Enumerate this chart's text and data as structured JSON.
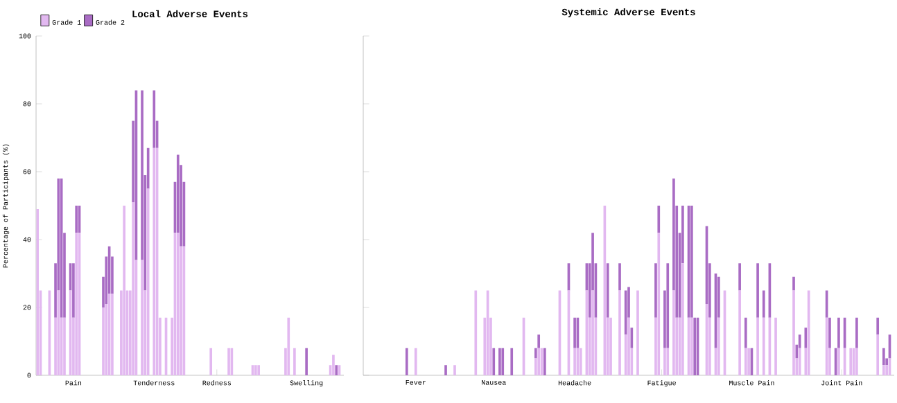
{
  "chart_data": [
    {
      "type": "bar",
      "title": "Local Adverse Events",
      "ylabel": "Percentage of Participants (%)",
      "stacked": true,
      "legend": "top left",
      "categories": [
        null,
        null,
        null,
        null,
        null,
        null,
        null,
        null,
        null,
        null,
        null,
        null,
        "Pain",
        null,
        null,
        null,
        null,
        null,
        null,
        null,
        null,
        null,
        null,
        null,
        null,
        null,
        null,
        null,
        null,
        null,
        null,
        null,
        null,
        null,
        null,
        null,
        null,
        null,
        null,
        "Tenderness",
        null,
        null,
        null,
        null,
        null,
        null,
        null,
        null,
        null,
        null,
        null,
        null,
        null,
        null,
        null,
        null,
        null,
        null,
        null,
        null,
        "Redness",
        null,
        null,
        null,
        null,
        null,
        null,
        null,
        null,
        null,
        null,
        null,
        null,
        null,
        null,
        null,
        null,
        null,
        null,
        null,
        null,
        null,
        null,
        null,
        null,
        null,
        null,
        null,
        null,
        null,
        "Swelling",
        null,
        null,
        null,
        null,
        null,
        null,
        null,
        null,
        null,
        null,
        null,
        null
      ],
      "ylim": [
        0,
        100
      ],
      "yticks": [
        0,
        20,
        40,
        60,
        80,
        100
      ],
      "series": [
        {
          "name": "Grade 1",
          "color": "#e2b8f0",
          "values": [
            49,
            25,
            0,
            0,
            25,
            0,
            17,
            25,
            17,
            17,
            0,
            25,
            17,
            42,
            42,
            0,
            0,
            0,
            0,
            0,
            0,
            0,
            20,
            21,
            24,
            24,
            0,
            0,
            25,
            50,
            25,
            25,
            51,
            34,
            0,
            34,
            25,
            55,
            0,
            67,
            67,
            17,
            0,
            17,
            0,
            17,
            42,
            42,
            38,
            38,
            0,
            0,
            0,
            0,
            0,
            0,
            0,
            0,
            8,
            0,
            0,
            0,
            0,
            0,
            8,
            8,
            0,
            0,
            0,
            0,
            0,
            0,
            3,
            3,
            3,
            0,
            0,
            0,
            0,
            0,
            0,
            0,
            0,
            8,
            17,
            0,
            8,
            0,
            0,
            0,
            0,
            0,
            0,
            0,
            0,
            0,
            0,
            0,
            3,
            6,
            0,
            3,
            0
          ]
        },
        {
          "name": "Grade 2",
          "color": "#a96cc4",
          "values": [
            0,
            0,
            0,
            0,
            0,
            0,
            16,
            33,
            41,
            25,
            0,
            8,
            16,
            8,
            8,
            0,
            0,
            0,
            0,
            0,
            0,
            0,
            9,
            14,
            14,
            11,
            0,
            0,
            0,
            0,
            0,
            0,
            24,
            50,
            0,
            50,
            34,
            12,
            0,
            17,
            8,
            0,
            0,
            0,
            0,
            0,
            15,
            23,
            24,
            19,
            0,
            0,
            0,
            0,
            0,
            0,
            0,
            0,
            0,
            0,
            0,
            0,
            0,
            0,
            0,
            0,
            0,
            0,
            0,
            0,
            0,
            0,
            0,
            0,
            0,
            0,
            0,
            0,
            0,
            0,
            0,
            0,
            0,
            0,
            0,
            0,
            0,
            0,
            0,
            0,
            8,
            0,
            0,
            0,
            0,
            0,
            0,
            0,
            0,
            0,
            3,
            0,
            0
          ]
        }
      ]
    },
    {
      "type": "bar",
      "title": "Systemic Adverse Events",
      "stacked": true,
      "tick_labels": "x",
      "categories": [
        null,
        null,
        null,
        null,
        null,
        null,
        null,
        null,
        null,
        null,
        null,
        null,
        null,
        null,
        null,
        null,
        null,
        "Fever",
        null,
        null,
        null,
        null,
        null,
        null,
        null,
        null,
        null,
        null,
        null,
        null,
        null,
        null,
        null,
        null,
        null,
        null,
        null,
        null,
        null,
        null,
        null,
        null,
        null,
        "Nausea",
        null,
        null,
        null,
        null,
        null,
        null,
        null,
        null,
        null,
        null,
        null,
        null,
        null,
        null,
        null,
        null,
        null,
        null,
        null,
        null,
        null,
        null,
        null,
        null,
        null,
        null,
        "Headache",
        null,
        null,
        null,
        null,
        null,
        null,
        null,
        null,
        null,
        null,
        null,
        null,
        null,
        null,
        null,
        null,
        null,
        null,
        null,
        null,
        null,
        null,
        null,
        null,
        null,
        null,
        null,
        null,
        "Fatigue",
        null,
        null,
        null,
        null,
        null,
        null,
        null,
        null,
        null,
        null,
        null,
        null,
        null,
        null,
        null,
        null,
        null,
        null,
        null,
        null,
        null,
        null,
        null,
        null,
        null,
        null,
        null,
        null,
        null,
        "Muscle Pain",
        null,
        null,
        null,
        null,
        null,
        null,
        null,
        null,
        null,
        null,
        null,
        null,
        null,
        null,
        null,
        null,
        null,
        null,
        null,
        null,
        null,
        null,
        null,
        null,
        null,
        null,
        null,
        null,
        null,
        "Joint Pain",
        null,
        null,
        null,
        null,
        null,
        null,
        null,
        null,
        null,
        null,
        null,
        null,
        null,
        null,
        null,
        null,
        null
      ],
      "ylim": [
        0,
        100
      ],
      "yticks": [
        0,
        20,
        40,
        60,
        80,
        100
      ],
      "series": [
        {
          "color": "#e2b8f0",
          "values": [
            0,
            0,
            0,
            0,
            0,
            0,
            0,
            0,
            0,
            0,
            0,
            0,
            0,
            0,
            0,
            0,
            0,
            8,
            0,
            0,
            0,
            0,
            0,
            0,
            0,
            0,
            0,
            0,
            0,
            0,
            3,
            0,
            0,
            0,
            0,
            0,
            0,
            25,
            0,
            0,
            17,
            25,
            17,
            0,
            0,
            0,
            0,
            0,
            0,
            0,
            0,
            0,
            0,
            17,
            0,
            0,
            0,
            5,
            8,
            8,
            0,
            0,
            0,
            0,
            0,
            25,
            0,
            0,
            25,
            0,
            8,
            8,
            8,
            0,
            25,
            17,
            25,
            17,
            0,
            0,
            50,
            17,
            17,
            0,
            0,
            25,
            0,
            12,
            17,
            8,
            0,
            25,
            0,
            0,
            0,
            0,
            0,
            17,
            42,
            0,
            8,
            8,
            0,
            25,
            17,
            17,
            33,
            0,
            17,
            17,
            0,
            0,
            0,
            0,
            21,
            17,
            0,
            8,
            17,
            0,
            25,
            0,
            0,
            0,
            0,
            25,
            0,
            8,
            8,
            0,
            0,
            17,
            0,
            17,
            0,
            17,
            0,
            17,
            0,
            0,
            0,
            0,
            0,
            25,
            5,
            8,
            0,
            8,
            25,
            0,
            0,
            0,
            0,
            0,
            17,
            8,
            0,
            0,
            8,
            0,
            8,
            0,
            8,
            8,
            8,
            0,
            0,
            0,
            0,
            0,
            0,
            12,
            0,
            3,
            3,
            5,
            0
          ]
        },
        {
          "color": "#a96cc4",
          "values": [
            0,
            0,
            0,
            0,
            0,
            0,
            0,
            0,
            0,
            0,
            0,
            0,
            0,
            0,
            8,
            0,
            0,
            0,
            0,
            0,
            0,
            0,
            0,
            0,
            0,
            0,
            0,
            3,
            0,
            0,
            0,
            0,
            0,
            0,
            0,
            0,
            0,
            0,
            0,
            0,
            0,
            0,
            0,
            8,
            0,
            8,
            8,
            0,
            0,
            8,
            0,
            0,
            0,
            0,
            0,
            0,
            0,
            3,
            4,
            0,
            8,
            0,
            0,
            0,
            0,
            0,
            0,
            0,
            8,
            0,
            9,
            9,
            0,
            0,
            8,
            16,
            17,
            16,
            0,
            0,
            0,
            16,
            0,
            0,
            0,
            8,
            0,
            13,
            9,
            6,
            0,
            0,
            0,
            0,
            0,
            0,
            0,
            16,
            8,
            0,
            17,
            25,
            0,
            33,
            33,
            25,
            17,
            0,
            33,
            33,
            17,
            17,
            0,
            0,
            23,
            16,
            0,
            22,
            12,
            0,
            0,
            0,
            0,
            0,
            0,
            8,
            0,
            9,
            0,
            8,
            0,
            16,
            0,
            8,
            0,
            16,
            0,
            0,
            0,
            0,
            0,
            0,
            0,
            4,
            4,
            4,
            0,
            6,
            0,
            0,
            0,
            0,
            0,
            0,
            8,
            9,
            0,
            8,
            9,
            0,
            9,
            0,
            0,
            0,
            9,
            0,
            0,
            0,
            0,
            0,
            0,
            5,
            0,
            5,
            2,
            7,
            0
          ]
        }
      ]
    }
  ]
}
